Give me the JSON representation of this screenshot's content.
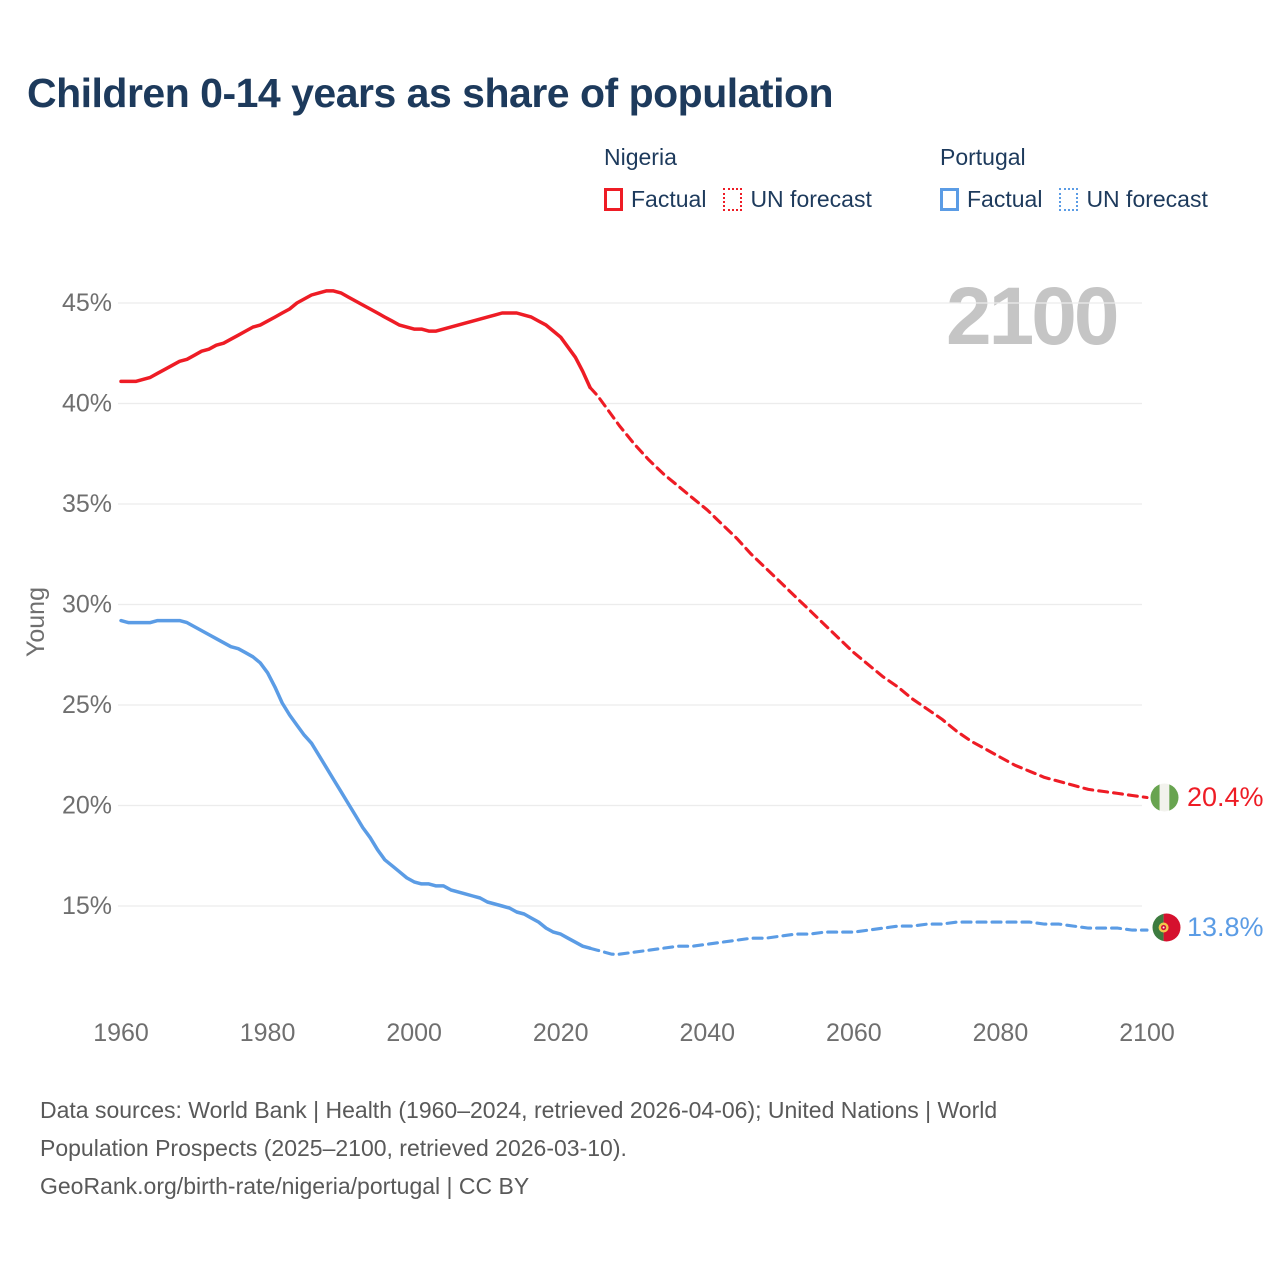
{
  "header": {
    "title": "Children 0-14 years as share of population"
  },
  "legend": {
    "groups": [
      {
        "name": "Nigeria",
        "color": "#ee1c25",
        "items": [
          {
            "label": "Factual",
            "style": "solid"
          },
          {
            "label": "UN forecast",
            "style": "dotted"
          }
        ]
      },
      {
        "name": "Portugal",
        "color": "#5b9ce5",
        "items": [
          {
            "label": "Factual",
            "style": "solid"
          },
          {
            "label": "UN forecast",
            "style": "dotted"
          }
        ]
      }
    ]
  },
  "watermark": {
    "text": "2100"
  },
  "chart_data": {
    "type": "line",
    "title": "Children 0-14 years as share of population",
    "xlabel": "",
    "ylabel": "Young",
    "x_ticks": [
      1960,
      1980,
      2000,
      2020,
      2040,
      2060,
      2080,
      2100
    ],
    "y_ticks": [
      "15%",
      "20%",
      "25%",
      "30%",
      "35%",
      "40%",
      "45%"
    ],
    "y_tick_values": [
      15,
      20,
      25,
      30,
      35,
      40,
      45
    ],
    "xlim": [
      1958,
      2104
    ],
    "ylim": [
      12,
      47
    ],
    "grid": "horizontal-only",
    "legend_position": "top-right",
    "colors": {
      "nigeria": "#ee1c25",
      "portugal": "#5b9ce5",
      "grid": "#ececec",
      "axis_text": "#6f6f6f",
      "watermark": "#c5c5c5",
      "title_text": "#1d3a5c",
      "footer_text": "#595959"
    },
    "series": [
      {
        "id": "nigeria-factual",
        "name": "Nigeria Factual",
        "color": "#ee1c25",
        "dash": false,
        "points": [
          [
            1960,
            41.1
          ],
          [
            1961,
            41.1
          ],
          [
            1962,
            41.1
          ],
          [
            1963,
            41.2
          ],
          [
            1964,
            41.3
          ],
          [
            1965,
            41.5
          ],
          [
            1966,
            41.7
          ],
          [
            1967,
            41.9
          ],
          [
            1968,
            42.1
          ],
          [
            1969,
            42.2
          ],
          [
            1970,
            42.4
          ],
          [
            1971,
            42.6
          ],
          [
            1972,
            42.7
          ],
          [
            1973,
            42.9
          ],
          [
            1974,
            43.0
          ],
          [
            1975,
            43.2
          ],
          [
            1976,
            43.4
          ],
          [
            1977,
            43.6
          ],
          [
            1978,
            43.8
          ],
          [
            1979,
            43.9
          ],
          [
            1980,
            44.1
          ],
          [
            1981,
            44.3
          ],
          [
            1982,
            44.5
          ],
          [
            1983,
            44.7
          ],
          [
            1984,
            45.0
          ],
          [
            1985,
            45.2
          ],
          [
            1986,
            45.4
          ],
          [
            1987,
            45.5
          ],
          [
            1988,
            45.6
          ],
          [
            1989,
            45.6
          ],
          [
            1990,
            45.5
          ],
          [
            1991,
            45.3
          ],
          [
            1992,
            45.1
          ],
          [
            1993,
            44.9
          ],
          [
            1994,
            44.7
          ],
          [
            1995,
            44.5
          ],
          [
            1996,
            44.3
          ],
          [
            1997,
            44.1
          ],
          [
            1998,
            43.9
          ],
          [
            1999,
            43.8
          ],
          [
            2000,
            43.7
          ],
          [
            2001,
            43.7
          ],
          [
            2002,
            43.6
          ],
          [
            2003,
            43.6
          ],
          [
            2004,
            43.7
          ],
          [
            2005,
            43.8
          ],
          [
            2006,
            43.9
          ],
          [
            2007,
            44.0
          ],
          [
            2008,
            44.1
          ],
          [
            2009,
            44.2
          ],
          [
            2010,
            44.3
          ],
          [
            2011,
            44.4
          ],
          [
            2012,
            44.5
          ],
          [
            2013,
            44.5
          ],
          [
            2014,
            44.5
          ],
          [
            2015,
            44.4
          ],
          [
            2016,
            44.3
          ],
          [
            2017,
            44.1
          ],
          [
            2018,
            43.9
          ],
          [
            2019,
            43.6
          ],
          [
            2020,
            43.3
          ],
          [
            2021,
            42.8
          ],
          [
            2022,
            42.3
          ],
          [
            2023,
            41.6
          ],
          [
            2024,
            40.8
          ]
        ]
      },
      {
        "id": "nigeria-forecast",
        "name": "Nigeria UN forecast",
        "color": "#ee1c25",
        "dash": true,
        "points": [
          [
            2024,
            40.8
          ],
          [
            2025,
            40.4
          ],
          [
            2026,
            39.9
          ],
          [
            2028,
            38.9
          ],
          [
            2030,
            38.0
          ],
          [
            2032,
            37.2
          ],
          [
            2034,
            36.5
          ],
          [
            2036,
            35.9
          ],
          [
            2038,
            35.3
          ],
          [
            2040,
            34.7
          ],
          [
            2042,
            34.0
          ],
          [
            2044,
            33.3
          ],
          [
            2046,
            32.5
          ],
          [
            2048,
            31.8
          ],
          [
            2050,
            31.1
          ],
          [
            2052,
            30.4
          ],
          [
            2054,
            29.7
          ],
          [
            2056,
            29.0
          ],
          [
            2058,
            28.3
          ],
          [
            2060,
            27.6
          ],
          [
            2062,
            27.0
          ],
          [
            2064,
            26.4
          ],
          [
            2066,
            25.9
          ],
          [
            2068,
            25.3
          ],
          [
            2070,
            24.8
          ],
          [
            2072,
            24.3
          ],
          [
            2074,
            23.7
          ],
          [
            2076,
            23.2
          ],
          [
            2078,
            22.8
          ],
          [
            2080,
            22.4
          ],
          [
            2082,
            22.0
          ],
          [
            2084,
            21.7
          ],
          [
            2086,
            21.4
          ],
          [
            2088,
            21.2
          ],
          [
            2090,
            21.0
          ],
          [
            2092,
            20.8
          ],
          [
            2094,
            20.7
          ],
          [
            2096,
            20.6
          ],
          [
            2098,
            20.5
          ],
          [
            2100,
            20.4
          ]
        ]
      },
      {
        "id": "portugal-factual",
        "name": "Portugal Factual",
        "color": "#5b9ce5",
        "dash": false,
        "points": [
          [
            1960,
            29.2
          ],
          [
            1961,
            29.1
          ],
          [
            1962,
            29.1
          ],
          [
            1963,
            29.1
          ],
          [
            1964,
            29.1
          ],
          [
            1965,
            29.2
          ],
          [
            1966,
            29.2
          ],
          [
            1967,
            29.2
          ],
          [
            1968,
            29.2
          ],
          [
            1969,
            29.1
          ],
          [
            1970,
            28.9
          ],
          [
            1971,
            28.7
          ],
          [
            1972,
            28.5
          ],
          [
            1973,
            28.3
          ],
          [
            1974,
            28.1
          ],
          [
            1975,
            27.9
          ],
          [
            1976,
            27.8
          ],
          [
            1977,
            27.6
          ],
          [
            1978,
            27.4
          ],
          [
            1979,
            27.1
          ],
          [
            1980,
            26.6
          ],
          [
            1981,
            25.9
          ],
          [
            1982,
            25.1
          ],
          [
            1983,
            24.5
          ],
          [
            1984,
            24.0
          ],
          [
            1985,
            23.5
          ],
          [
            1986,
            23.1
          ],
          [
            1987,
            22.5
          ],
          [
            1988,
            21.9
          ],
          [
            1989,
            21.3
          ],
          [
            1990,
            20.7
          ],
          [
            1991,
            20.1
          ],
          [
            1992,
            19.5
          ],
          [
            1993,
            18.9
          ],
          [
            1994,
            18.4
          ],
          [
            1995,
            17.8
          ],
          [
            1996,
            17.3
          ],
          [
            1997,
            17.0
          ],
          [
            1998,
            16.7
          ],
          [
            1999,
            16.4
          ],
          [
            2000,
            16.2
          ],
          [
            2001,
            16.1
          ],
          [
            2002,
            16.1
          ],
          [
            2003,
            16.0
          ],
          [
            2004,
            16.0
          ],
          [
            2005,
            15.8
          ],
          [
            2006,
            15.7
          ],
          [
            2007,
            15.6
          ],
          [
            2008,
            15.5
          ],
          [
            2009,
            15.4
          ],
          [
            2010,
            15.2
          ],
          [
            2011,
            15.1
          ],
          [
            2012,
            15.0
          ],
          [
            2013,
            14.9
          ],
          [
            2014,
            14.7
          ],
          [
            2015,
            14.6
          ],
          [
            2016,
            14.4
          ],
          [
            2017,
            14.2
          ],
          [
            2018,
            13.9
          ],
          [
            2019,
            13.7
          ],
          [
            2020,
            13.6
          ],
          [
            2021,
            13.4
          ],
          [
            2022,
            13.2
          ],
          [
            2023,
            13.0
          ],
          [
            2024,
            12.9
          ]
        ]
      },
      {
        "id": "portugal-forecast",
        "name": "Portugal UN forecast",
        "color": "#5b9ce5",
        "dash": true,
        "points": [
          [
            2024,
            12.9
          ],
          [
            2025,
            12.8
          ],
          [
            2026,
            12.7
          ],
          [
            2027,
            12.6
          ],
          [
            2028,
            12.6
          ],
          [
            2030,
            12.7
          ],
          [
            2032,
            12.8
          ],
          [
            2034,
            12.9
          ],
          [
            2036,
            13.0
          ],
          [
            2038,
            13.0
          ],
          [
            2040,
            13.1
          ],
          [
            2042,
            13.2
          ],
          [
            2044,
            13.3
          ],
          [
            2046,
            13.4
          ],
          [
            2048,
            13.4
          ],
          [
            2050,
            13.5
          ],
          [
            2052,
            13.6
          ],
          [
            2054,
            13.6
          ],
          [
            2056,
            13.7
          ],
          [
            2058,
            13.7
          ],
          [
            2060,
            13.7
          ],
          [
            2062,
            13.8
          ],
          [
            2064,
            13.9
          ],
          [
            2066,
            14.0
          ],
          [
            2068,
            14.0
          ],
          [
            2070,
            14.1
          ],
          [
            2072,
            14.1
          ],
          [
            2074,
            14.2
          ],
          [
            2076,
            14.2
          ],
          [
            2078,
            14.2
          ],
          [
            2080,
            14.2
          ],
          [
            2082,
            14.2
          ],
          [
            2084,
            14.2
          ],
          [
            2086,
            14.1
          ],
          [
            2088,
            14.1
          ],
          [
            2090,
            14.0
          ],
          [
            2092,
            13.9
          ],
          [
            2094,
            13.9
          ],
          [
            2096,
            13.9
          ],
          [
            2098,
            13.8
          ],
          [
            2100,
            13.8
          ]
        ]
      }
    ],
    "end_labels": [
      {
        "country": "Nigeria",
        "value": "20.4%",
        "color": "#ee1c25",
        "flag_icon": "nigeria-flag"
      },
      {
        "country": "Portugal",
        "value": "13.8%",
        "color": "#5b9ce5",
        "flag_icon": "portugal-flag"
      }
    ]
  },
  "footer": {
    "lines": [
      "Data sources: World Bank | Health (1960–2024, retrieved 2026-04-06); United Nations | World",
      "Population Prospects (2025–2100, retrieved 2026-03-10).",
      "GeoRank.org/birth-rate/nigeria/portugal | CC BY"
    ]
  }
}
